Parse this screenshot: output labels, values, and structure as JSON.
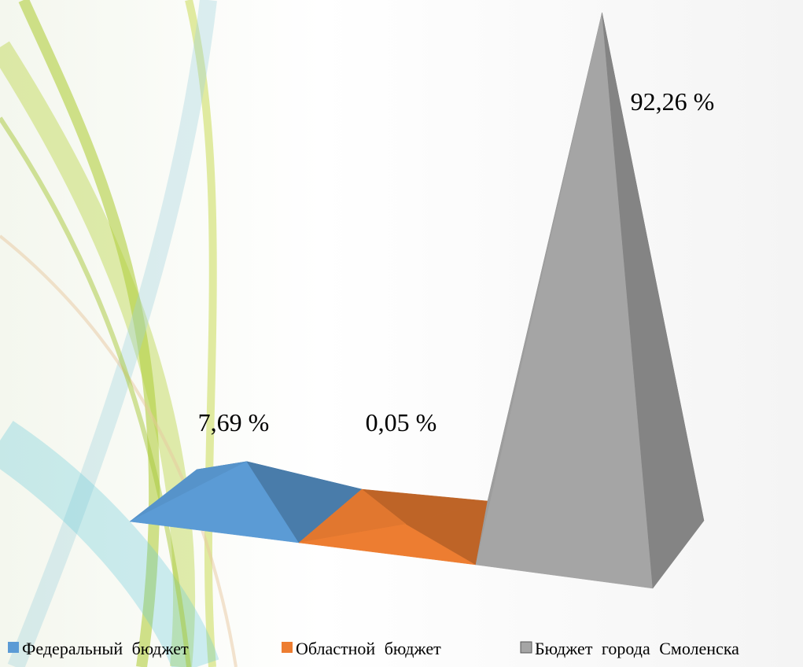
{
  "chart_data": {
    "type": "pyramid",
    "categories": [
      "Федеральный бюджет",
      "Областной бюджет",
      "Бюджет города Смоленска"
    ],
    "values": [
      7.69,
      0.05,
      92.26
    ],
    "value_labels": [
      "7,69 %",
      "0,05 %",
      "92,26 %"
    ],
    "colors": [
      "#5b9bd5",
      "#ed7d31",
      "#a5a5a5"
    ],
    "legend": "bottom"
  }
}
